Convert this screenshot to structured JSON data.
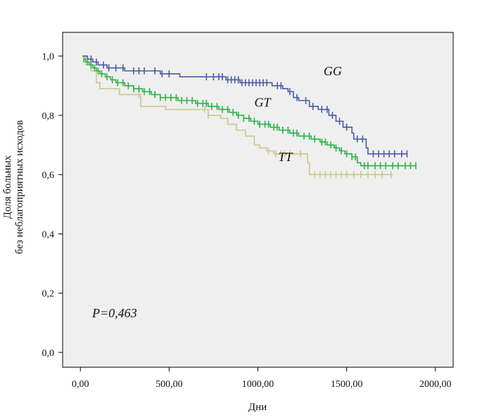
{
  "chart_data": {
    "type": "line",
    "title": "",
    "xlabel": "Дни",
    "ylabel_lines": [
      "Доля больных",
      "без неблагоприятных исходов"
    ],
    "xlim": [
      -100,
      2100
    ],
    "ylim": [
      -0.05,
      1.08
    ],
    "x_ticks": [
      0,
      500,
      1000,
      1500,
      2000
    ],
    "x_tick_labels": [
      "0,00",
      "500,00",
      "1000,00",
      "1500,00",
      "2000,00"
    ],
    "y_ticks": [
      0.0,
      0.2,
      0.4,
      0.6,
      0.8,
      1.0
    ],
    "y_tick_labels": [
      "0,0",
      "0,2",
      "0,4",
      "0,6",
      "0,8",
      "1,0"
    ],
    "grid": false,
    "background_color": "#efefef",
    "annotation": "P=0,463",
    "series": [
      {
        "name": "GG",
        "color": "#4a5ba8",
        "steps": [
          [
            20,
            1.0
          ],
          [
            40,
            0.99
          ],
          [
            70,
            0.98
          ],
          [
            100,
            0.97
          ],
          [
            150,
            0.96
          ],
          [
            250,
            0.95
          ],
          [
            450,
            0.94
          ],
          [
            560,
            0.93
          ],
          [
            820,
            0.92
          ],
          [
            900,
            0.91
          ],
          [
            1080,
            0.9
          ],
          [
            1140,
            0.89
          ],
          [
            1170,
            0.88
          ],
          [
            1200,
            0.86
          ],
          [
            1230,
            0.85
          ],
          [
            1290,
            0.83
          ],
          [
            1340,
            0.82
          ],
          [
            1400,
            0.8
          ],
          [
            1440,
            0.78
          ],
          [
            1480,
            0.76
          ],
          [
            1530,
            0.74
          ],
          [
            1540,
            0.72
          ],
          [
            1610,
            0.69
          ],
          [
            1620,
            0.67
          ],
          [
            1840,
            0.67
          ]
        ],
        "censored": [
          60,
          90,
          130,
          160,
          200,
          240,
          300,
          330,
          360,
          420,
          460,
          500,
          710,
          750,
          780,
          800,
          830,
          850,
          870,
          890,
          910,
          930,
          950,
          970,
          990,
          1010,
          1030,
          1050,
          1110,
          1130,
          1180,
          1220,
          1270,
          1310,
          1360,
          1390,
          1420,
          1460,
          1500,
          1560,
          1590,
          1650,
          1680,
          1710,
          1740,
          1770,
          1810,
          1840
        ]
      },
      {
        "name": "GT",
        "color": "#2db24a",
        "steps": [
          [
            10,
            1.0
          ],
          [
            20,
            0.99
          ],
          [
            30,
            0.98
          ],
          [
            50,
            0.97
          ],
          [
            70,
            0.96
          ],
          [
            90,
            0.95
          ],
          [
            110,
            0.94
          ],
          [
            140,
            0.93
          ],
          [
            170,
            0.92
          ],
          [
            200,
            0.91
          ],
          [
            250,
            0.9
          ],
          [
            300,
            0.89
          ],
          [
            350,
            0.88
          ],
          [
            400,
            0.87
          ],
          [
            450,
            0.86
          ],
          [
            550,
            0.85
          ],
          [
            650,
            0.84
          ],
          [
            720,
            0.83
          ],
          [
            780,
            0.82
          ],
          [
            840,
            0.81
          ],
          [
            880,
            0.8
          ],
          [
            920,
            0.79
          ],
          [
            960,
            0.78
          ],
          [
            1000,
            0.77
          ],
          [
            1070,
            0.76
          ],
          [
            1120,
            0.75
          ],
          [
            1180,
            0.74
          ],
          [
            1230,
            0.73
          ],
          [
            1300,
            0.72
          ],
          [
            1350,
            0.71
          ],
          [
            1390,
            0.7
          ],
          [
            1430,
            0.69
          ],
          [
            1460,
            0.68
          ],
          [
            1490,
            0.67
          ],
          [
            1530,
            0.66
          ],
          [
            1560,
            0.64
          ],
          [
            1580,
            0.63
          ],
          [
            1890,
            0.63
          ]
        ],
        "censored": [
          20,
          40,
          60,
          80,
          100,
          120,
          150,
          180,
          210,
          240,
          270,
          300,
          330,
          360,
          390,
          420,
          450,
          480,
          510,
          540,
          570,
          600,
          630,
          660,
          690,
          710,
          740,
          770,
          800,
          830,
          860,
          890,
          920,
          950,
          980,
          1010,
          1040,
          1060,
          1090,
          1110,
          1140,
          1170,
          1200,
          1220,
          1260,
          1290,
          1320,
          1360,
          1380,
          1410,
          1440,
          1470,
          1500,
          1530,
          1550,
          1600,
          1620,
          1660,
          1690,
          1720,
          1760,
          1790,
          1830,
          1860,
          1890
        ]
      },
      {
        "name": "TT",
        "color": "#c9c98a",
        "steps": [
          [
            15,
            1.0
          ],
          [
            30,
            0.97
          ],
          [
            60,
            0.95
          ],
          [
            90,
            0.91
          ],
          [
            110,
            0.89
          ],
          [
            220,
            0.87
          ],
          [
            340,
            0.83
          ],
          [
            480,
            0.82
          ],
          [
            720,
            0.8
          ],
          [
            790,
            0.79
          ],
          [
            830,
            0.77
          ],
          [
            880,
            0.75
          ],
          [
            930,
            0.73
          ],
          [
            980,
            0.7
          ],
          [
            1010,
            0.69
          ],
          [
            1050,
            0.68
          ],
          [
            1090,
            0.67
          ],
          [
            1280,
            0.64
          ],
          [
            1290,
            0.6
          ],
          [
            1760,
            0.6
          ]
        ],
        "censored": [
          330,
          700,
          720,
          1060,
          1100,
          1130,
          1150,
          1180,
          1240,
          1320,
          1350,
          1380,
          1410,
          1440,
          1470,
          1500,
          1540,
          1580,
          1620,
          1660,
          1700,
          1750
        ]
      }
    ]
  }
}
